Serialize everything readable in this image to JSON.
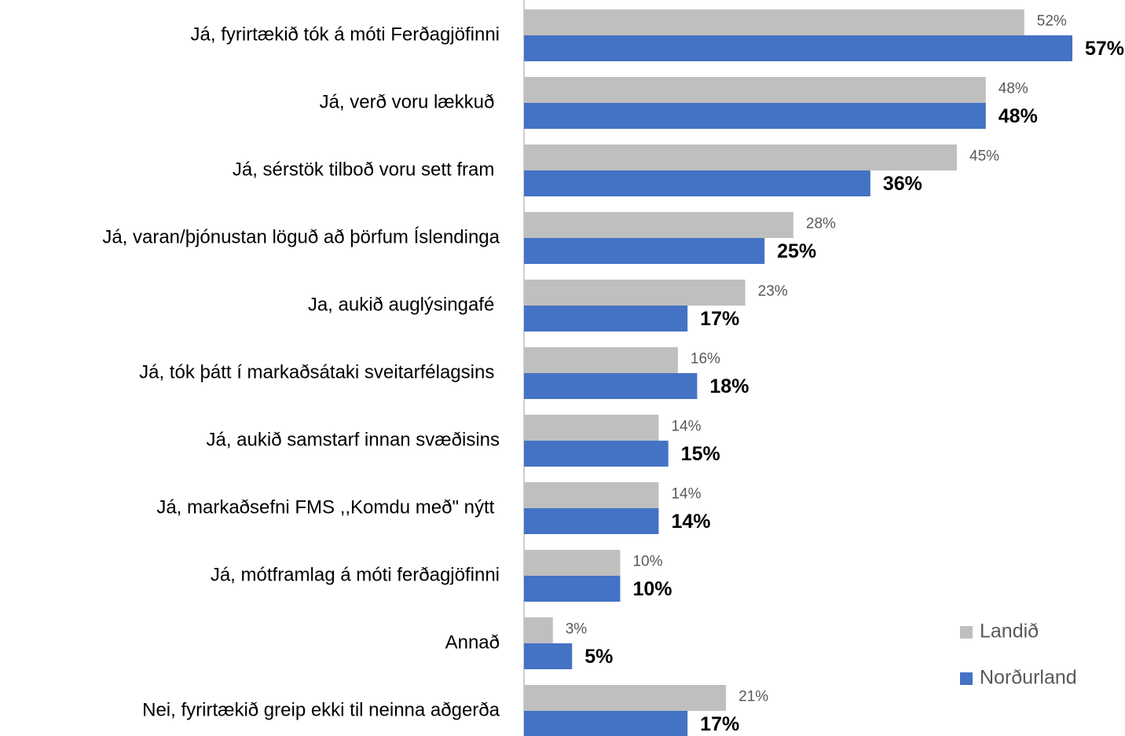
{
  "chart_data": {
    "type": "bar",
    "orientation": "horizontal",
    "categories": [
      "Já, fyrirtækið tók á móti Ferðagjöfinni",
      "Já, verð voru lækkuð ",
      "Já, sérstök tilboð voru sett fram ",
      "Já, varan/þjónustan löguð að þörfum Íslendinga",
      "Ja, aukið auglýsingafé ",
      "Já, tók þátt í markaðsátaki sveitarfélagsins ",
      "Já, aukið samstarf innan svæðisins",
      "Já, markaðsefni FMS ,,Komdu með\" nýtt ",
      "Já, mótframlag á móti ferðagjöfinni",
      "Annað",
      "Nei, fyrirtækið greip ekki til neinna aðgerða"
    ],
    "series": [
      {
        "name": "Landið",
        "color": "#bfbfbf",
        "values": [
          52,
          48,
          45,
          28,
          23,
          16,
          14,
          14,
          10,
          3,
          21
        ],
        "value_labels": [
          "52%",
          "48%",
          "45%",
          "28%",
          "23%",
          "16%",
          "14%",
          "14%",
          "10%",
          "3%",
          "21%"
        ]
      },
      {
        "name": "Norðurland",
        "color": "#4472c4",
        "values": [
          57,
          48,
          36,
          25,
          17,
          18,
          15,
          14,
          10,
          5,
          17
        ],
        "value_labels": [
          "57%",
          "48%",
          "36%",
          "25%",
          "17%",
          "18%",
          "15%",
          "14%",
          "10%",
          "5%",
          "17%"
        ]
      }
    ],
    "legend": "bottom-right"
  }
}
